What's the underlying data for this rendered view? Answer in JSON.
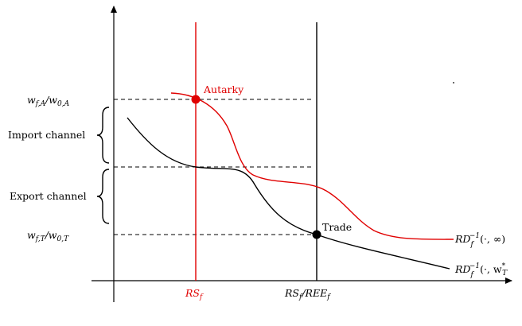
{
  "labels": {
    "wA_main": "w",
    "wA_sub1": "f,A",
    "wA_mid": "/w",
    "wA_sub2": "0,A",
    "wT_main": "w",
    "wT_sub1": "f,T",
    "wT_mid": "/w",
    "wT_sub2": "0,T",
    "import_channel": "Import channel",
    "export_channel": "Export channel",
    "autarky": "Autarky",
    "trade": "Trade",
    "rs_main": "RS",
    "rs_sub": "f",
    "rsree_main": "RS",
    "rsree_sub1": "f",
    "rsree_mid": "/REE",
    "rsree_sub2": "f",
    "rd1_main": "RD",
    "rd1_sub": "f",
    "rd1_sup": "−1",
    "rd1_args": "(·, ∞)",
    "rd2_main": "RD",
    "rd2_sub": "f",
    "rd2_sup": "−1",
    "rd2_args": "(·, w",
    "rd2_args_sup": "*",
    "rd2_args_sub": "T"
  },
  "colors": {
    "red": "#e00000",
    "black": "#000000"
  }
}
